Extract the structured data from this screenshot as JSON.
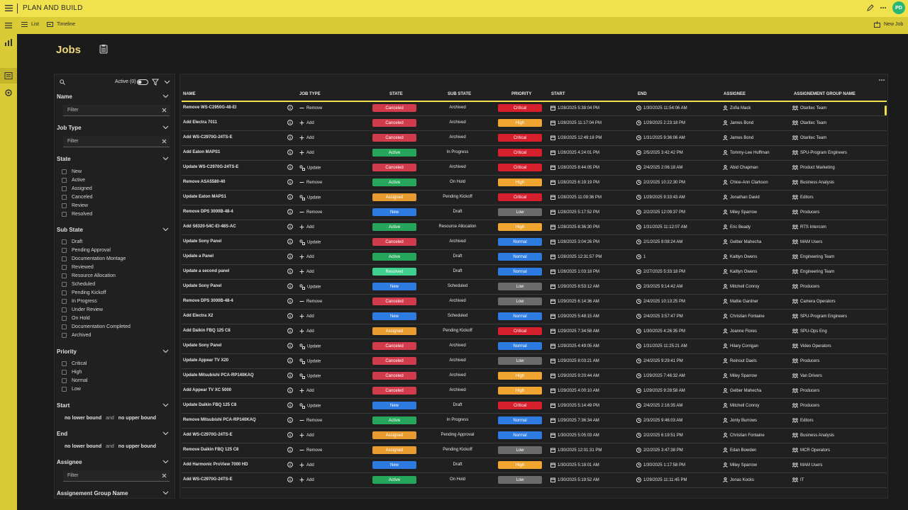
{
  "app": {
    "title": "PLAN AND BUILD",
    "user_initials": "PD"
  },
  "subbar": {
    "list_label": "List",
    "timeline_label": "Timeline",
    "new_job_label": "New Job"
  },
  "page": {
    "title": "Jobs"
  },
  "filters": {
    "active_label": "Active (0)",
    "name": {
      "label": "Name",
      "placeholder": "Filter"
    },
    "job_type": {
      "label": "Job Type",
      "placeholder": "Filter"
    },
    "state": {
      "label": "State",
      "options": [
        "New",
        "Active",
        "Assigned",
        "Canceled",
        "Review",
        "Resolved"
      ]
    },
    "sub_state": {
      "label": "Sub State",
      "options": [
        "Draft",
        "Pending Approval",
        "Documentation Montage",
        "Reviewed",
        "Resource Allocation",
        "Scheduled",
        "Pending Kickoff",
        "In Progress",
        "Under Review",
        "On Hold",
        "Documentation Completed",
        "Archived"
      ]
    },
    "priority": {
      "label": "Priority",
      "options": [
        "Critical",
        "High",
        "Normal",
        "Low"
      ]
    },
    "start": {
      "label": "Start",
      "lower": "no lower bound",
      "and": "and",
      "upper": "no upper bound"
    },
    "end": {
      "label": "End",
      "lower": "no lower bound",
      "and": "and",
      "upper": "no upper bound"
    },
    "assignee": {
      "label": "Assignee",
      "placeholder": "Filter"
    },
    "group": {
      "label": "Assignement Group Name"
    }
  },
  "table": {
    "columns": [
      "NAME",
      "JOB TYPE",
      "STATE",
      "SUB STATE",
      "PRIORITY",
      "START",
      "END",
      "ASSIGNEE",
      "ASSIGNEMENT GROUP NAME"
    ],
    "rows": [
      {
        "name": "Remove WS-C2950G-48-EI",
        "type": "Remove",
        "state": "Canceled",
        "sub": "Archived",
        "priority": "Critical",
        "start": "1/28/2025 5:38:04 PM",
        "end": "1/30/2025 11:54:06 AM",
        "assignee": "Zofia Mack",
        "group": "Otaritec Team"
      },
      {
        "name": "Add Electra 7011",
        "type": "Add",
        "state": "Canceled",
        "sub": "Archived",
        "priority": "High",
        "start": "1/28/2025 11:17:04 PM",
        "end": "1/29/2025 2:23:18 PM",
        "assignee": "James Bond",
        "group": "Otaritec Team"
      },
      {
        "name": "Add WS-C2970G-24TS-E",
        "type": "Add",
        "state": "Canceled",
        "sub": "Archived",
        "priority": "Critical",
        "start": "1/28/2025 12:49:18 PM",
        "end": "1/31/2025 9:36:06 AM",
        "assignee": "James Bond",
        "group": "Otaritec Team"
      },
      {
        "name": "Add Eaton MAPS1",
        "type": "Add",
        "state": "Active",
        "sub": "In Progress",
        "priority": "Critical",
        "start": "1/28/2025 4:24:01 PM",
        "end": "2/5/2025 3:42:42 PM",
        "assignee": "Tommy-Lee Huffman",
        "group": "SPU-Program Engineers"
      },
      {
        "name": "Update WS-C2970G-24TS-E",
        "type": "Update",
        "state": "Canceled",
        "sub": "Archived",
        "priority": "Critical",
        "start": "1/28/2025 8:44:05 PM",
        "end": "2/4/2025 2:06:18 AM",
        "assignee": "Abid Chapman",
        "group": "Product Marketing"
      },
      {
        "name": "Remove ASA5580-40",
        "type": "Remove",
        "state": "Active",
        "sub": "On Hold",
        "priority": "High",
        "start": "1/28/2025 6:19:19 PM",
        "end": "2/2/2025 10:22:30 PM",
        "assignee": "Chloe-Ann Clarkson",
        "group": "Business Analysis"
      },
      {
        "name": "Update Eaton MAPS1",
        "type": "Update",
        "state": "Assigned",
        "sub": "Pending Kickoff",
        "priority": "Critical",
        "start": "1/28/2025 11:09:36 PM",
        "end": "1/29/2025 9:33:43 AM",
        "assignee": "Jonathan David",
        "group": "Editors"
      },
      {
        "name": "Remove DPS 3000B-48-4",
        "type": "Remove",
        "state": "New",
        "sub": "Draft",
        "priority": "Low",
        "start": "1/28/2025 5:17:52 PM",
        "end": "2/2/2025 12:09:37 PM",
        "assignee": "Miley Sparrow",
        "group": "Producers"
      },
      {
        "name": "Add S6320-54C-EI-48S-AC",
        "type": "Add",
        "state": "Active",
        "sub": "Resource Allocation",
        "priority": "High",
        "start": "1/28/2025 8:36:30 PM",
        "end": "1/31/2025 11:12:07 AM",
        "assignee": "Eric Beady",
        "group": "RTS Intercom"
      },
      {
        "name": "Update Sony Panel",
        "type": "Update",
        "state": "Canceled",
        "sub": "Archived",
        "priority": "Normal",
        "start": "1/28/2025 3:04:26 PM",
        "end": "2/1/2025 8:08:24 AM",
        "assignee": "Gelber Mahecha",
        "group": "MAM Users"
      },
      {
        "name": "Update a Panel",
        "type": "Add",
        "state": "Active",
        "sub": "Draft",
        "priority": "Normal",
        "start": "1/28/2025 12:31:57 PM",
        "end": "1",
        "assignee": "Kaitlyn Owens",
        "group": "Engineering Team"
      },
      {
        "name": "Update a second panel",
        "type": "Add",
        "state": "Resolved",
        "sub": "Draft",
        "priority": "Normal",
        "start": "1/28/2025 1:03:18 PM",
        "end": "2/27/2025 5:33:18 PM",
        "assignee": "Kaitlyn Owens",
        "group": "Engineering Team"
      },
      {
        "name": "Update Sony Panel",
        "type": "Update",
        "state": "New",
        "sub": "Scheduled",
        "priority": "Low",
        "start": "1/29/2025 8:53:12 AM",
        "end": "2/3/2025 9:14:42 AM",
        "assignee": "Mitchell Conroy",
        "group": "Producers"
      },
      {
        "name": "Remove DPS 3000B-48-4",
        "type": "Remove",
        "state": "Canceled",
        "sub": "Archived",
        "priority": "Low",
        "start": "1/29/2025 6:14:36 AM",
        "end": "2/4/2025 10:13:25 PM",
        "assignee": "Mattie Gardner",
        "group": "Camera Operators"
      },
      {
        "name": "Add Electra X2",
        "type": "Add",
        "state": "New",
        "sub": "Scheduled",
        "priority": "Normal",
        "start": "1/29/2025 5:48:15 AM",
        "end": "2/4/2025 3:57:47 PM",
        "assignee": "Christian Fontaine",
        "group": "SPU-Program Engineers"
      },
      {
        "name": "Add Daikin FBQ 125 C8",
        "type": "Add",
        "state": "Assigned",
        "sub": "Pending Kickoff",
        "priority": "Critical",
        "start": "1/29/2025 7:34:58 AM",
        "end": "1/30/2025 4:26:35 PM",
        "assignee": "Joanne Flores",
        "group": "SPU-Ops Eng"
      },
      {
        "name": "Update Sony Panel",
        "type": "Update",
        "state": "Canceled",
        "sub": "Archived",
        "priority": "Normal",
        "start": "1/29/2025 4:49:05 AM",
        "end": "1/31/2025 11:25:21 AM",
        "assignee": "Hilary Corrigan",
        "group": "Video Operators"
      },
      {
        "name": "Update Appear TV X20",
        "type": "Update",
        "state": "Canceled",
        "sub": "Archived",
        "priority": "Low",
        "start": "1/29/2025 8:03:21 AM",
        "end": "2/4/2025 9:29:41 PM",
        "assignee": "Reinout Daels",
        "group": "Producers"
      },
      {
        "name": "Update Mitsubishi PCA-RP140KAQ",
        "type": "Update",
        "state": "Canceled",
        "sub": "Archived",
        "priority": "High",
        "start": "1/29/2025 9:20:44 AM",
        "end": "1/29/2025 7:46:32 AM",
        "assignee": "Miley Sparrow",
        "group": "Van Drivers"
      },
      {
        "name": "Add Appear TV XC 5000",
        "type": "Add",
        "state": "Canceled",
        "sub": "Archived",
        "priority": "High",
        "start": "1/29/2025 4:00:10 AM",
        "end": "1/29/2025 9:28:58 AM",
        "assignee": "Gelber Mahecha",
        "group": "Producers"
      },
      {
        "name": "Update Daikin FBQ 125 C8",
        "type": "Update",
        "state": "New",
        "sub": "Draft",
        "priority": "Critical",
        "start": "1/29/2025 5:14:49 PM",
        "end": "2/4/2025 2:16:35 AM",
        "assignee": "Mitchell Conroy",
        "group": "Producers"
      },
      {
        "name": "Remove Mitsubishi PCA-RP140KAQ",
        "type": "Remove",
        "state": "Active",
        "sub": "In Progress",
        "priority": "Normal",
        "start": "1/29/2025 7:36:34 AM",
        "end": "2/3/2025 9:46:03 AM",
        "assignee": "Jonty Burrows",
        "group": "Editors"
      },
      {
        "name": "Add WS-C2970G-24TS-E",
        "type": "Add",
        "state": "Assigned",
        "sub": "Pending Approval",
        "priority": "Normal",
        "start": "1/30/2025 5:05:03 AM",
        "end": "2/2/2025 6:19:51 PM",
        "assignee": "Christian Fontaine",
        "group": "Business Analysis"
      },
      {
        "name": "Remove Daikin FBQ 125 C8",
        "type": "Remove",
        "state": "Assigned",
        "sub": "Pending Kickoff",
        "priority": "Low",
        "start": "1/30/2025 12:01:31 PM",
        "end": "2/2/2025 3:47:38 PM",
        "assignee": "Edan Bowden",
        "group": "MCR Operators"
      },
      {
        "name": "Add Harmonic ProView 7000 HD",
        "type": "Add",
        "state": "New",
        "sub": "Draft",
        "priority": "High",
        "start": "1/30/2025 5:18:01 AM",
        "end": "1/30/2025 1:17:58 PM",
        "assignee": "Miley Sparrow",
        "group": "MAM Users"
      },
      {
        "name": "Add WS-C2970G-24TS-E",
        "type": "Add",
        "state": "Active",
        "sub": "On Hold",
        "priority": "Low",
        "start": "1/30/2025 5:19:52 AM",
        "end": "1/29/2025 11:11:45 PM",
        "assignee": "Jonas Kocks",
        "group": "IT"
      }
    ]
  },
  "colors": {
    "accent": "#f0e24c",
    "state": {
      "Canceled": "#d13b4b",
      "Active": "#26a65b",
      "Assigned": "#e89b2f",
      "New": "#2d7be0",
      "Resolved": "#3fcf8e"
    },
    "priority": {
      "Critical": "#d61f2c",
      "High": "#f0a531",
      "Normal": "#2d7be0",
      "Low": "#6b6b6b"
    }
  },
  "icons": [
    "menu-icon",
    "pencil-icon",
    "more-icon",
    "list-icon",
    "timeline-icon",
    "new-job-icon",
    "search-icon",
    "toggle-icon",
    "filter-clear-icon",
    "chevron-down-icon",
    "info-icon",
    "calendar-icon",
    "person-icon",
    "group-icon"
  ]
}
